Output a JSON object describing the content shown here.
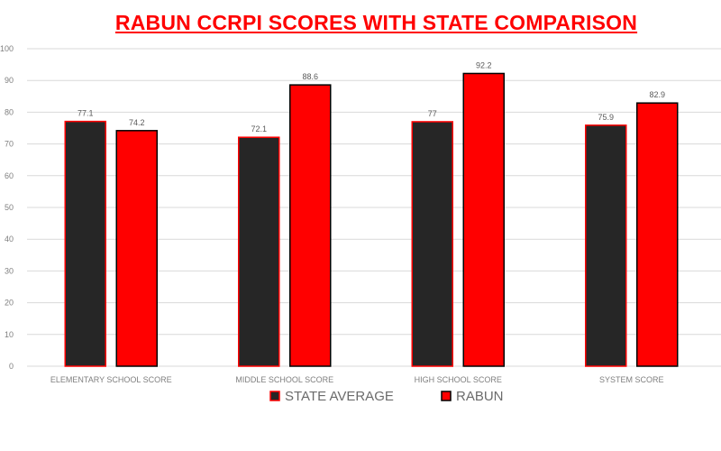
{
  "chart_data": {
    "type": "bar",
    "title": "RABUN CCRPI SCORES WITH STATE COMPARISON",
    "xlabel": "",
    "ylabel": "",
    "categories": [
      "ELEMENTARY SCHOOL SCORE",
      "MIDDLE SCHOOL SCORE",
      "HIGH SCHOOL SCORE",
      "SYSTEM SCORE"
    ],
    "series": [
      {
        "name": "STATE AVERAGE",
        "values": [
          77.1,
          72.1,
          77,
          75.9
        ],
        "labels": [
          "77.1",
          "72.1",
          "77",
          "75.9"
        ],
        "color": "#262626",
        "border": "#ff0000"
      },
      {
        "name": "RABUN",
        "values": [
          74.2,
          88.6,
          92.2,
          82.9
        ],
        "labels": [
          "74.2",
          "88.6",
          "92.2",
          "82.9"
        ],
        "color": "#ff0000",
        "border": "#000000"
      }
    ],
    "ylim": [
      0,
      100
    ],
    "yticks": [
      "0",
      "10",
      "20",
      "30",
      "40",
      "50",
      "60",
      "70",
      "80",
      "90",
      "100"
    ],
    "grid": true,
    "legend": "bottom"
  }
}
